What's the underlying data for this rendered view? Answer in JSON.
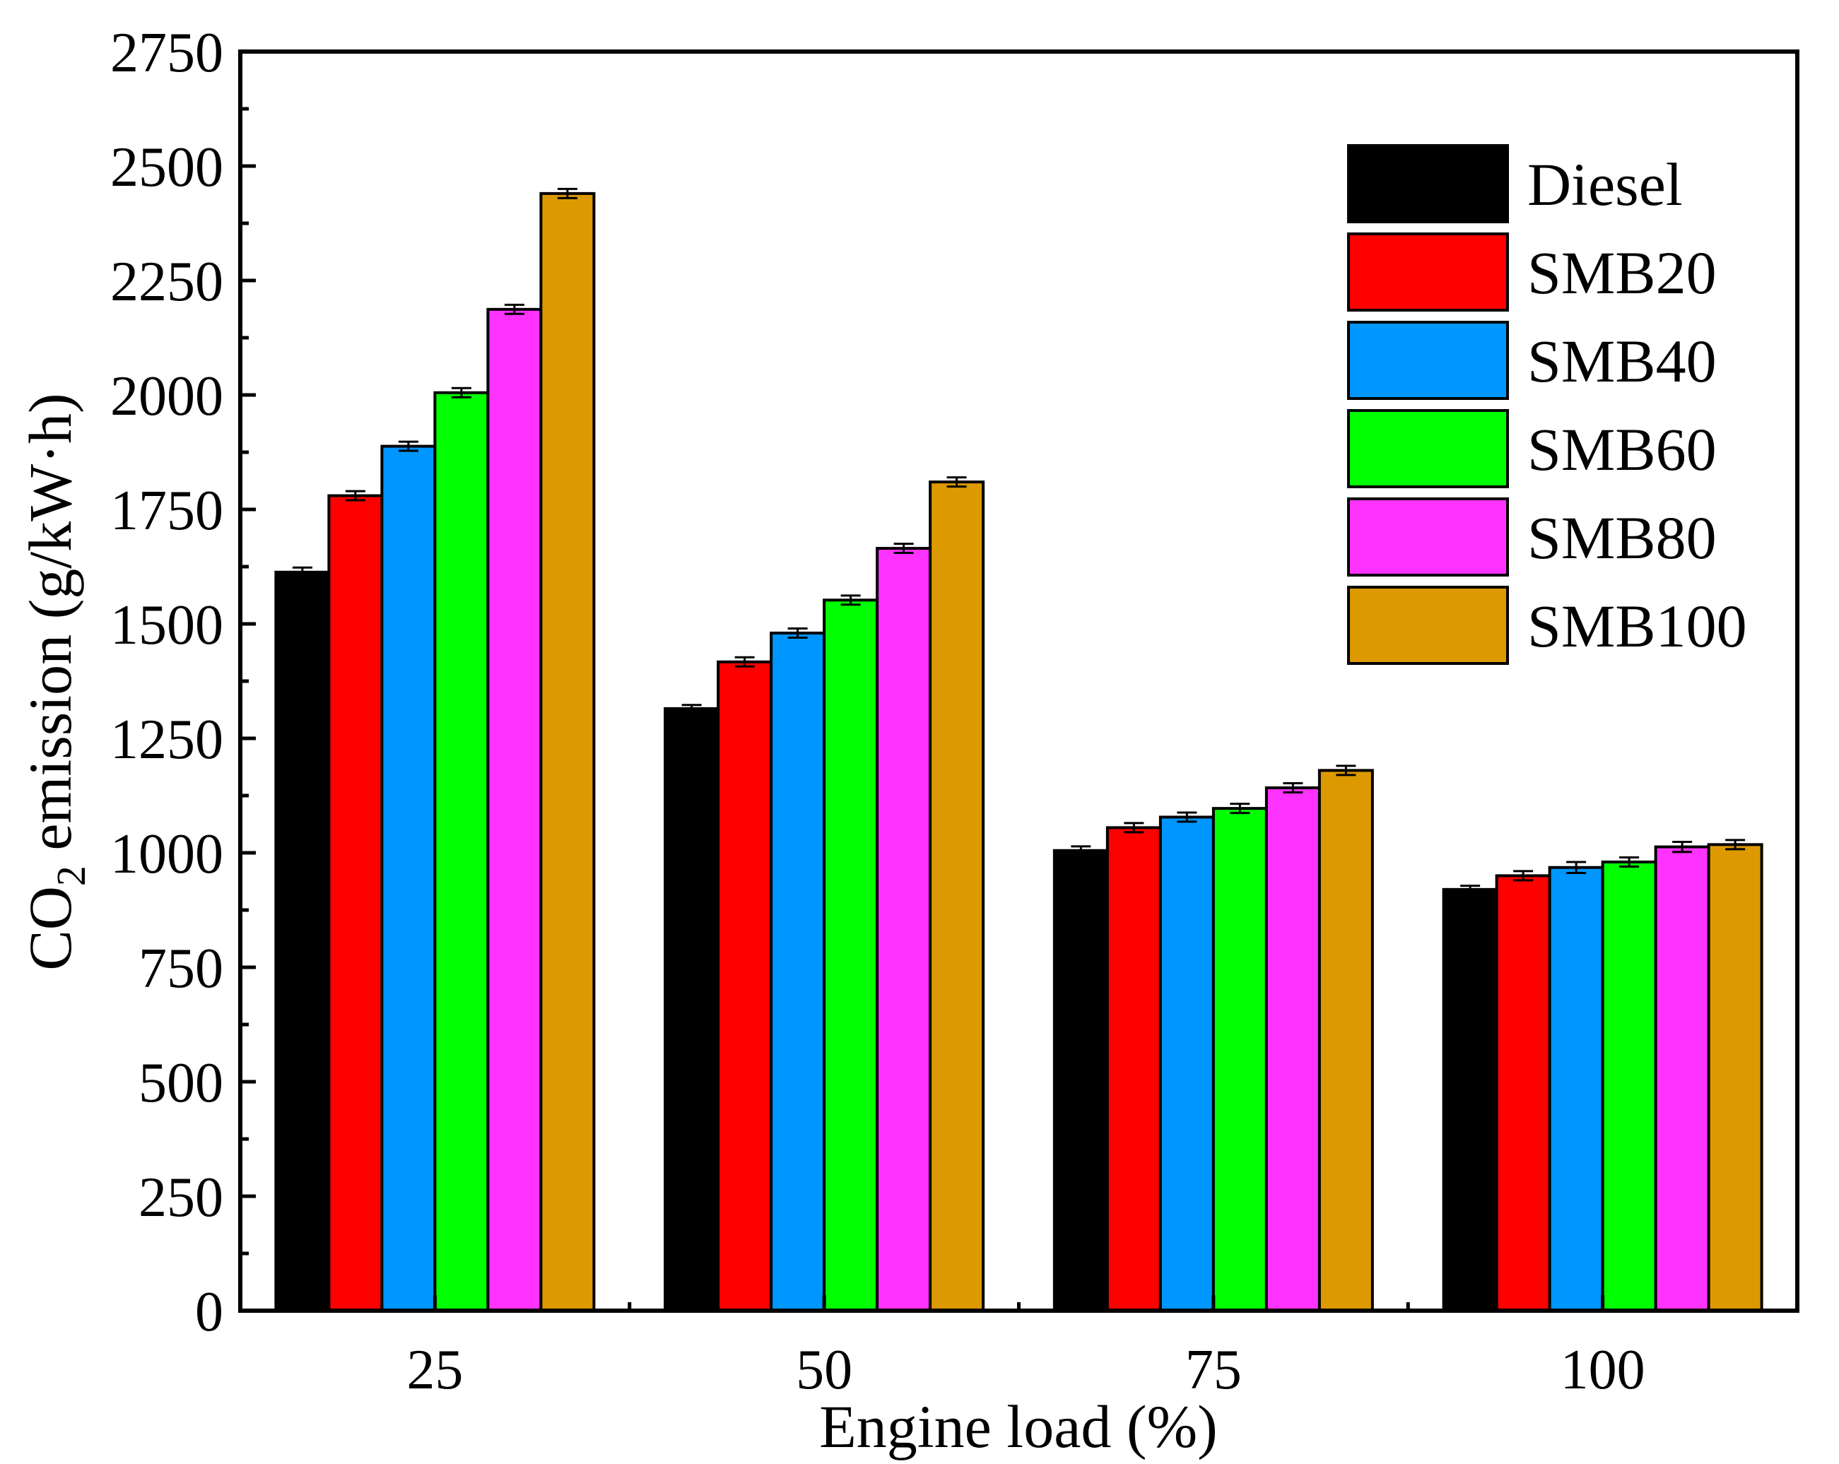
{
  "chart_data": {
    "type": "bar",
    "title": "",
    "xlabel": "Engine load (%)",
    "ylabel": {
      "prefix": "CO",
      "subscript": "2",
      "suffix": " emission (g/kW·h)"
    },
    "categories": [
      "25",
      "50",
      "75",
      "100"
    ],
    "ylim": [
      0,
      2750
    ],
    "yticks": [
      "0",
      "250",
      "500",
      "750",
      "1000",
      "1250",
      "1500",
      "1750",
      "2000",
      "2250",
      "2500",
      "2750"
    ],
    "grid": false,
    "legend_position": "top-right",
    "series": [
      {
        "name": "Diesel",
        "color": "#000000",
        "values": [
          1613,
          1315,
          1005,
          920
        ],
        "errors": [
          10,
          8,
          9,
          8
        ]
      },
      {
        "name": "SMB20",
        "color": "#ff0000",
        "values": [
          1780,
          1417,
          1055,
          950
        ],
        "errors": [
          10,
          10,
          10,
          10
        ]
      },
      {
        "name": "SMB40",
        "color": "#0096ff",
        "values": [
          1888,
          1480,
          1078,
          968
        ],
        "errors": [
          10,
          10,
          10,
          12
        ]
      },
      {
        "name": "SMB60",
        "color": "#00ff00",
        "values": [
          2005,
          1552,
          1097,
          980
        ],
        "errors": [
          10,
          10,
          10,
          10
        ]
      },
      {
        "name": "SMB80",
        "color": "#ff33ff",
        "values": [
          2187,
          1665,
          1142,
          1013
        ],
        "errors": [
          10,
          10,
          10,
          11
        ]
      },
      {
        "name": "SMB100",
        "color": "#dd9900",
        "values": [
          2440,
          1810,
          1180,
          1018
        ],
        "errors": [
          10,
          10,
          10,
          10
        ]
      }
    ]
  }
}
